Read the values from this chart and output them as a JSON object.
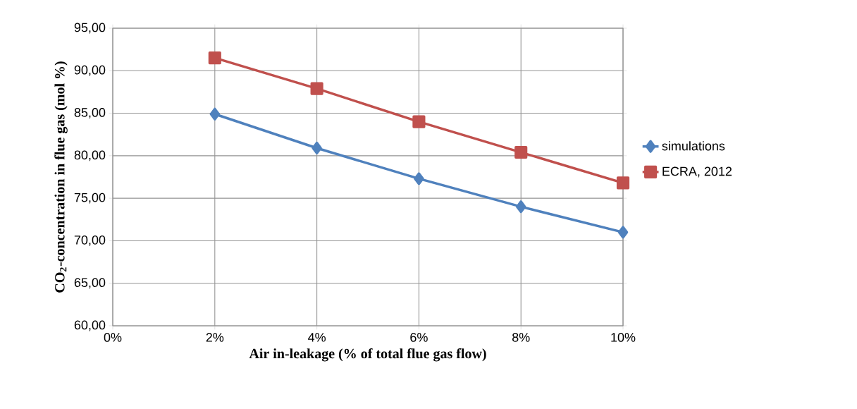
{
  "chart_data": {
    "type": "line",
    "xlabel": "Air in-leakage (% of total flue gas flow)",
    "ylabel": "CO$_{2}$-concentration in flue gas (mol %)",
    "x": [
      2,
      4,
      6,
      8,
      10
    ],
    "series": [
      {
        "name": "simulations",
        "color": "#4f81bd",
        "marker": "diamond",
        "values": [
          84.9,
          80.9,
          77.3,
          74.0,
          71.0
        ]
      },
      {
        "name": "ECRA, 2012",
        "color": "#c0504d",
        "marker": "square",
        "values": [
          91.5,
          87.9,
          84.0,
          80.4,
          76.8
        ]
      }
    ],
    "xlim": [
      0,
      10
    ],
    "xticks": [
      {
        "value": 0,
        "label": "0%"
      },
      {
        "value": 2,
        "label": "2%"
      },
      {
        "value": 4,
        "label": "4%"
      },
      {
        "value": 6,
        "label": "6%"
      },
      {
        "value": 8,
        "label": "8%"
      },
      {
        "value": 10,
        "label": "10%"
      }
    ],
    "ylim": [
      60,
      95
    ],
    "yticks": [
      {
        "value": 60,
        "label": "60,00"
      },
      {
        "value": 65,
        "label": "65,00"
      },
      {
        "value": 70,
        "label": "70,00"
      },
      {
        "value": 75,
        "label": "75,00"
      },
      {
        "value": 80,
        "label": "80,00"
      },
      {
        "value": 85,
        "label": "85,00"
      },
      {
        "value": 90,
        "label": "90,00"
      },
      {
        "value": 95,
        "label": "95,00"
      }
    ],
    "grid": true,
    "legend": "right",
    "line_style": "solid"
  }
}
